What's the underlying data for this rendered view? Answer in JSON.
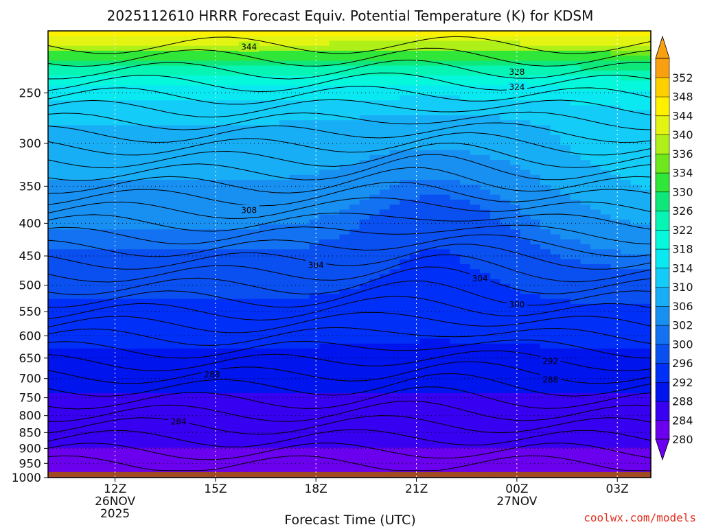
{
  "chart_data": {
    "type": "heatmap",
    "title": "2025112610 HRRR Forecast Equiv. Potential Temperature (K) for KDSM",
    "xlabel": "Forecast Time (UTC)",
    "ylabel": "",
    "x_ticks": [
      {
        "hour": 12,
        "label": "12Z",
        "date": "26NOV",
        "year": "2025"
      },
      {
        "hour": 15,
        "label": "15Z",
        "date": "",
        "year": ""
      },
      {
        "hour": 18,
        "label": "18Z",
        "date": "",
        "year": ""
      },
      {
        "hour": 21,
        "label": "21Z",
        "date": "",
        "year": ""
      },
      {
        "hour": 24,
        "label": "00Z",
        "date": "27NOV",
        "year": ""
      },
      {
        "hour": 27,
        "label": "03Z",
        "date": "",
        "year": ""
      }
    ],
    "xlim": [
      10,
      28
    ],
    "y_ticks": [
      250,
      300,
      350,
      400,
      450,
      500,
      550,
      600,
      650,
      700,
      750,
      800,
      850,
      900,
      950,
      1000
    ],
    "ylim": [
      200,
      1000
    ],
    "y_scale": "log",
    "colorbar": {
      "levels": [
        280,
        284,
        288,
        292,
        296,
        300,
        302,
        306,
        310,
        314,
        318,
        322,
        326,
        330,
        334,
        336,
        340,
        344,
        348,
        352
      ],
      "colors": [
        "#6a00ee",
        "#3800f0",
        "#0014ee",
        "#0030f8",
        "#0a50f0",
        "#1272f2",
        "#1890f2",
        "#18aef6",
        "#14ccf8",
        "#0ae8f2",
        "#06f8dc",
        "#06f4b4",
        "#0ee87a",
        "#30e638",
        "#6ee81c",
        "#aef018",
        "#e4f412",
        "#fff000",
        "#ffd000",
        "#f8a010"
      ],
      "extend": "both"
    },
    "ground_color": "#a04a24",
    "ground_level": 980,
    "contours": [
      {
        "value": 284,
        "label_pos": [
          13.9,
          818
        ]
      },
      {
        "value": 288,
        "label_pos": [
          14.9,
          690
        ]
      },
      {
        "value": 288,
        "label_pos": [
          25.0,
          703
        ]
      },
      {
        "value": 292,
        "label_pos": [
          25.0,
          658
        ]
      },
      {
        "value": 300,
        "label_pos": [
          24.0,
          536
        ]
      },
      {
        "value": 304,
        "label_pos": [
          18.0,
          465
        ]
      },
      {
        "value": 304,
        "label_pos": [
          22.9,
          488
        ]
      },
      {
        "value": 308,
        "label_pos": [
          16.0,
          382
        ]
      },
      {
        "value": 324,
        "label_pos": [
          24.0,
          245
        ]
      },
      {
        "value": 328,
        "label_pos": [
          24.0,
          232
        ]
      },
      {
        "value": 344,
        "label_pos": [
          16.0,
          212
        ]
      }
    ],
    "grid": true,
    "watermark": "coolwx.com/models"
  }
}
